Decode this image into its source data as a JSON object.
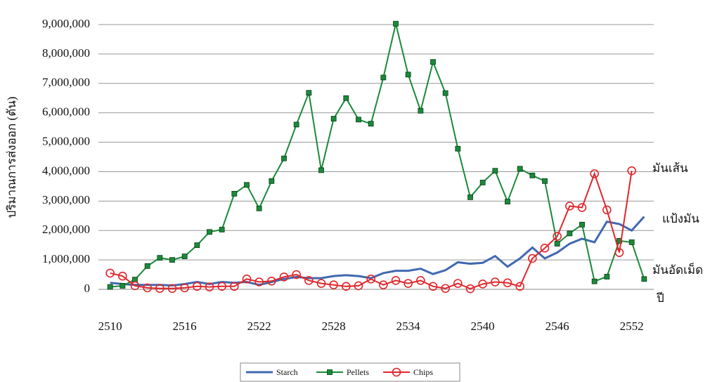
{
  "chart_data": {
    "type": "line",
    "y_label": "ปริมาณการส่งออก (ตัน)",
    "x": [
      2510,
      2511,
      2512,
      2513,
      2514,
      2515,
      2516,
      2517,
      2518,
      2519,
      2520,
      2521,
      2522,
      2523,
      2524,
      2525,
      2526,
      2527,
      2528,
      2529,
      2530,
      2531,
      2532,
      2533,
      2534,
      2535,
      2536,
      2537,
      2538,
      2539,
      2540,
      2541,
      2542,
      2543,
      2544,
      2545,
      2546,
      2547,
      2548,
      2549,
      2550,
      2551,
      2552,
      2553
    ],
    "series": [
      {
        "name": "Starch",
        "color": "#4169b0",
        "marker": "none",
        "values": [
          220000,
          180000,
          150000,
          150000,
          150000,
          130000,
          180000,
          250000,
          180000,
          250000,
          220000,
          250000,
          150000,
          250000,
          350000,
          420000,
          380000,
          380000,
          450000,
          480000,
          450000,
          380000,
          550000,
          630000,
          630000,
          700000,
          520000,
          650000,
          920000,
          870000,
          900000,
          1130000,
          770000,
          1050000,
          1420000,
          1050000,
          1250000,
          1550000,
          1720000,
          1600000,
          2300000,
          2220000,
          2000000,
          2470000
        ]
      },
      {
        "name": "Pellets",
        "color": "#1a8a3a",
        "marker": "square",
        "values": [
          80000,
          120000,
          330000,
          790000,
          1070000,
          1000000,
          1120000,
          1500000,
          1950000,
          2030000,
          3250000,
          3550000,
          2750000,
          3680000,
          4450000,
          5600000,
          6680000,
          4050000,
          5800000,
          6500000,
          5770000,
          5630000,
          7200000,
          9030000,
          7300000,
          6070000,
          7730000,
          6670000,
          4780000,
          3130000,
          3630000,
          4030000,
          2980000,
          4100000,
          3870000,
          3680000,
          1550000,
          1900000,
          2200000,
          270000,
          430000,
          1650000,
          1600000,
          350000
        ]
      },
      {
        "name": "Chips",
        "color": "#e0262b",
        "marker": "circle",
        "values": [
          550000,
          450000,
          120000,
          50000,
          30000,
          30000,
          50000,
          100000,
          80000,
          100000,
          100000,
          350000,
          250000,
          280000,
          420000,
          500000,
          300000,
          200000,
          150000,
          100000,
          120000,
          350000,
          150000,
          300000,
          200000,
          300000,
          100000,
          30000,
          200000,
          20000,
          180000,
          250000,
          220000,
          100000,
          1050000,
          1400000,
          1800000,
          2830000,
          2780000,
          3930000,
          2700000,
          1250000,
          4030000,
          null
        ]
      }
    ],
    "xlim": [
      2509,
      2554
    ],
    "xticks": [
      2510,
      2516,
      2522,
      2528,
      2534,
      2540,
      2546,
      2552
    ],
    "ylim": [
      0,
      9000000
    ],
    "yticks": [
      {
        "value": 0,
        "label": "0"
      },
      {
        "value": 1000000,
        "label": "1,000,000"
      },
      {
        "value": 2000000,
        "label": "2,000,000"
      },
      {
        "value": 3000000,
        "label": "3,000,000"
      },
      {
        "value": 4000000,
        "label": "4,000,000"
      },
      {
        "value": 5000000,
        "label": "5,000,000"
      },
      {
        "value": 6000000,
        "label": "6,000,000"
      },
      {
        "value": 7000000,
        "label": "7,000,000"
      },
      {
        "value": 8000000,
        "label": "8,000,000"
      },
      {
        "value": 9000000,
        "label": "9,000,000"
      }
    ],
    "grid": true,
    "annotations": [
      "มันเส้น",
      "แป้งมัน",
      "มันอัดเม็ด",
      "ปี"
    ]
  }
}
